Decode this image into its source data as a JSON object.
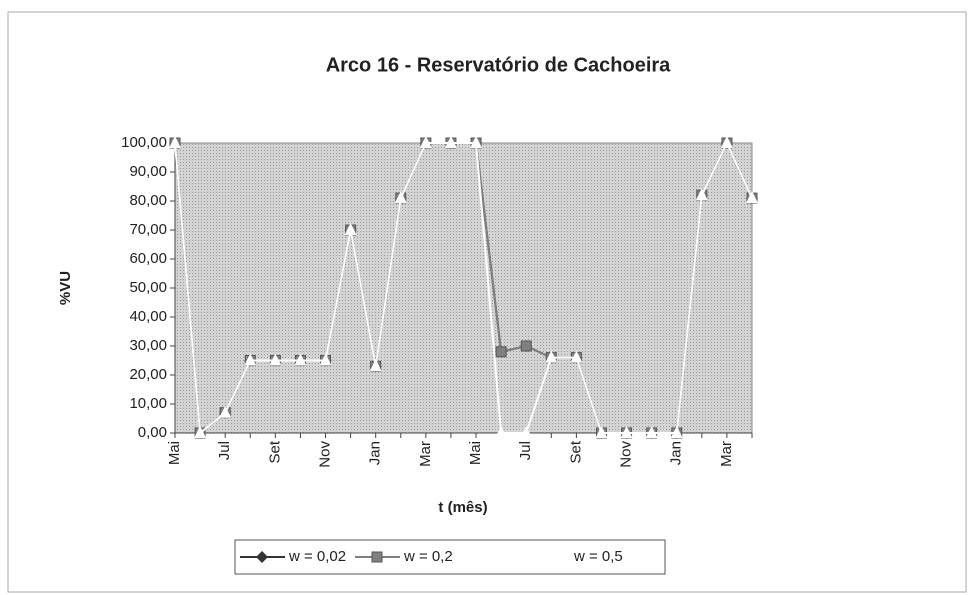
{
  "chart_data": {
    "type": "line",
    "title": "Arco 16 - Reservatório de Cachoeira",
    "y_label": "%VU",
    "x_label": "t (mês)",
    "categories": [
      "Mai",
      null,
      "Jul",
      null,
      "Set",
      null,
      "Nov",
      null,
      "Jan",
      null,
      "Mar",
      null,
      "Mai",
      null,
      "Jul",
      null,
      "Set",
      null,
      "Nov",
      null,
      "Jan",
      null,
      "Mar",
      null
    ],
    "series": [
      {
        "name": "w = 0,02",
        "color": "#333333",
        "marker": "diamond",
        "values": [
          100,
          0,
          7,
          25,
          25,
          25,
          25,
          70,
          23,
          81,
          100,
          100,
          100,
          28,
          30,
          26,
          26,
          0,
          0,
          0,
          0,
          82,
          100,
          81
        ]
      },
      {
        "name": "w = 0,2",
        "color": "#808080",
        "marker": "square",
        "values": [
          100,
          0,
          7,
          25,
          25,
          25,
          25,
          70,
          23,
          81,
          100,
          100,
          100,
          28,
          30,
          26,
          26,
          0,
          0,
          0,
          0,
          82,
          100,
          81
        ]
      },
      {
        "name": "w = 0,5",
        "color": "#ffffff",
        "marker": "triangle",
        "values": [
          100,
          0,
          7,
          25,
          25,
          25,
          25,
          70,
          23,
          81,
          100,
          100,
          100,
          0,
          0,
          26,
          26,
          0,
          0,
          0,
          0,
          82,
          100,
          81
        ]
      }
    ],
    "ylim": [
      0,
      100
    ],
    "yticks": [
      {
        "value": 0,
        "label": "0,00"
      },
      {
        "value": 10,
        "label": "10,00"
      },
      {
        "value": 20,
        "label": "20,00"
      },
      {
        "value": 30,
        "label": "30,00"
      },
      {
        "value": 40,
        "label": "40,00"
      },
      {
        "value": 50,
        "label": "50,00"
      },
      {
        "value": 60,
        "label": "60,00"
      },
      {
        "value": 70,
        "label": "70,00"
      },
      {
        "value": 80,
        "label": "80,00"
      },
      {
        "value": 90,
        "label": "90,00"
      },
      {
        "value": 100,
        "label": "100,00"
      }
    ],
    "grid": false,
    "legend": "bottom"
  }
}
